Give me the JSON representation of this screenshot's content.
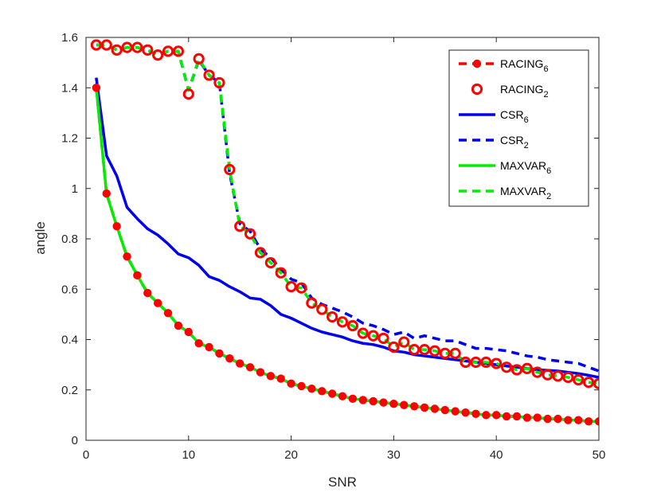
{
  "chart_data": {
    "type": "line",
    "title": "",
    "xlabel": "SNR",
    "ylabel": "angle",
    "xlim": [
      0,
      50
    ],
    "ylim": [
      0,
      1.6
    ],
    "xticks": [
      0,
      10,
      20,
      30,
      40,
      50
    ],
    "yticks": [
      0,
      0.2,
      0.4,
      0.6,
      0.8,
      1,
      1.2,
      1.4,
      1.6
    ],
    "xtick_labels": [
      "0",
      "10",
      "20",
      "30",
      "40",
      "50"
    ],
    "ytick_labels": [
      "0",
      "0.2",
      "0.4",
      "0.6",
      "0.8",
      "1",
      "1.2",
      "1.4",
      "1.6"
    ],
    "grid": false,
    "legend_position": "top-right",
    "x": [
      1,
      2,
      3,
      4,
      5,
      6,
      7,
      8,
      9,
      10,
      11,
      12,
      13,
      14,
      15,
      16,
      17,
      18,
      19,
      20,
      21,
      22,
      23,
      24,
      25,
      26,
      27,
      28,
      29,
      30,
      31,
      32,
      33,
      34,
      35,
      36,
      37,
      38,
      39,
      40,
      41,
      42,
      43,
      44,
      45,
      46,
      47,
      48,
      49,
      50
    ],
    "series": [
      {
        "name": "RACING",
        "subscript": "6",
        "color": "#ff0000",
        "line": "dashed",
        "marker": "filled-circle",
        "values": [
          1.4,
          0.98,
          0.85,
          0.73,
          0.655,
          0.585,
          0.545,
          0.505,
          0.455,
          0.43,
          0.385,
          0.37,
          0.345,
          0.325,
          0.305,
          0.29,
          0.27,
          0.255,
          0.245,
          0.225,
          0.215,
          0.205,
          0.195,
          0.185,
          0.175,
          0.165,
          0.16,
          0.155,
          0.15,
          0.145,
          0.14,
          0.135,
          0.13,
          0.125,
          0.12,
          0.115,
          0.11,
          0.105,
          0.1,
          0.1,
          0.095,
          0.095,
          0.09,
          0.09,
          0.085,
          0.085,
          0.08,
          0.08,
          0.075,
          0.075
        ]
      },
      {
        "name": "RACING",
        "subscript": "2",
        "color": "#ff0000",
        "line": "none",
        "marker": "open-circle",
        "values": [
          1.57,
          1.57,
          1.55,
          1.56,
          1.56,
          1.55,
          1.53,
          1.545,
          1.545,
          1.375,
          1.515,
          1.45,
          1.42,
          1.075,
          0.85,
          0.82,
          0.745,
          0.705,
          0.665,
          0.61,
          0.605,
          0.545,
          0.52,
          0.49,
          0.47,
          0.455,
          0.425,
          0.415,
          0.405,
          0.37,
          0.39,
          0.36,
          0.36,
          0.355,
          0.345,
          0.345,
          0.31,
          0.31,
          0.31,
          0.305,
          0.29,
          0.28,
          0.285,
          0.27,
          0.26,
          0.255,
          0.25,
          0.24,
          0.23,
          0.225
        ]
      },
      {
        "name": "CSR",
        "subscript": "6",
        "color": "#0000ee",
        "line": "solid",
        "marker": "none",
        "values": [
          1.44,
          1.13,
          1.05,
          0.925,
          0.88,
          0.84,
          0.815,
          0.78,
          0.74,
          0.725,
          0.695,
          0.65,
          0.635,
          0.61,
          0.59,
          0.565,
          0.56,
          0.535,
          0.5,
          0.485,
          0.465,
          0.445,
          0.43,
          0.42,
          0.41,
          0.395,
          0.385,
          0.38,
          0.37,
          0.355,
          0.35,
          0.34,
          0.335,
          0.33,
          0.325,
          0.32,
          0.315,
          0.31,
          0.305,
          0.3,
          0.295,
          0.29,
          0.285,
          0.28,
          0.278,
          0.275,
          0.27,
          0.265,
          0.258,
          0.25
        ]
      },
      {
        "name": "CSR",
        "subscript": "2",
        "color": "#0000ee",
        "line": "dashed",
        "marker": "none",
        "values": [
          1.57,
          1.57,
          1.55,
          1.56,
          1.56,
          1.55,
          1.53,
          1.545,
          1.545,
          1.39,
          1.51,
          1.45,
          1.42,
          1.06,
          0.86,
          0.83,
          0.76,
          0.725,
          0.68,
          0.64,
          0.625,
          0.565,
          0.54,
          0.525,
          0.51,
          0.49,
          0.465,
          0.455,
          0.44,
          0.42,
          0.43,
          0.405,
          0.415,
          0.405,
          0.395,
          0.395,
          0.38,
          0.365,
          0.365,
          0.36,
          0.355,
          0.345,
          0.335,
          0.33,
          0.32,
          0.315,
          0.31,
          0.305,
          0.29,
          0.275
        ]
      },
      {
        "name": "MAXVAR",
        "subscript": "6",
        "color": "#00ee00",
        "line": "solid",
        "marker": "none",
        "values": [
          1.4,
          0.98,
          0.85,
          0.73,
          0.655,
          0.585,
          0.545,
          0.505,
          0.455,
          0.43,
          0.385,
          0.37,
          0.345,
          0.325,
          0.305,
          0.29,
          0.27,
          0.255,
          0.245,
          0.225,
          0.215,
          0.205,
          0.195,
          0.185,
          0.175,
          0.165,
          0.16,
          0.155,
          0.15,
          0.145,
          0.14,
          0.135,
          0.13,
          0.125,
          0.12,
          0.115,
          0.11,
          0.105,
          0.1,
          0.1,
          0.095,
          0.095,
          0.09,
          0.09,
          0.085,
          0.085,
          0.08,
          0.08,
          0.075,
          0.075
        ]
      },
      {
        "name": "MAXVAR",
        "subscript": "2",
        "color": "#00ee00",
        "line": "dashed",
        "marker": "none",
        "values": [
          1.57,
          1.57,
          1.55,
          1.56,
          1.56,
          1.55,
          1.53,
          1.545,
          1.545,
          1.39,
          1.515,
          1.45,
          1.42,
          1.075,
          0.85,
          0.82,
          0.745,
          0.705,
          0.665,
          0.61,
          0.605,
          0.545,
          0.52,
          0.49,
          0.47,
          0.455,
          0.425,
          0.415,
          0.405,
          0.37,
          0.39,
          0.36,
          0.36,
          0.355,
          0.345,
          0.345,
          0.31,
          0.31,
          0.31,
          0.305,
          0.29,
          0.28,
          0.285,
          0.27,
          0.26,
          0.255,
          0.25,
          0.24,
          0.23,
          0.225
        ]
      }
    ]
  }
}
